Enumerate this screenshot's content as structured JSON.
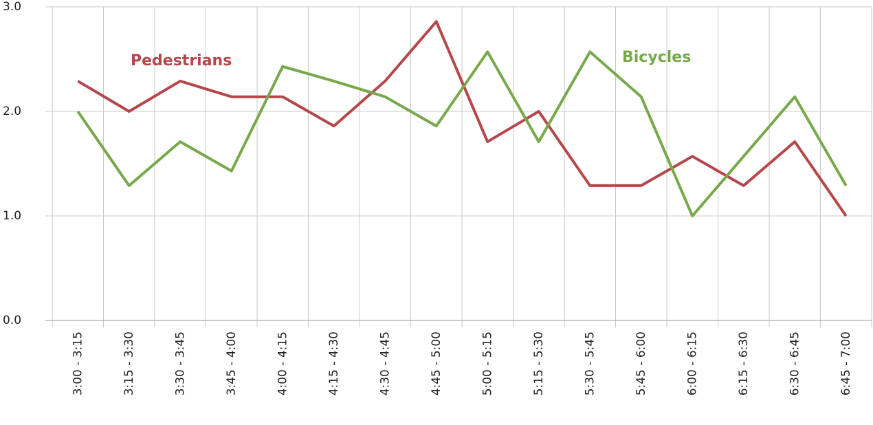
{
  "chart_data": {
    "type": "line",
    "categories": [
      "3:00 - 3:15",
      "3:15 - 3:30",
      "3:30 - 3:45",
      "3:45 - 4:00",
      "4:00 - 4:15",
      "4:15 - 4:30",
      "4:30 - 4:45",
      "4:45 - 5:00",
      "5:00 - 5:15",
      "5:15 - 5:30",
      "5:30 - 5:45",
      "5:45 - 6:00",
      "6:00 - 6:15",
      "6:15 - 6:30",
      "6:30 - 6:45",
      "6:45 - 7:00"
    ],
    "series": [
      {
        "name": "Pedestrians",
        "color": "#b5474a",
        "values": [
          2.29,
          2.0,
          2.29,
          2.14,
          2.14,
          1.86,
          2.29,
          2.86,
          1.71,
          2.0,
          1.29,
          1.29,
          1.57,
          1.29,
          1.71,
          1.0
        ]
      },
      {
        "name": "Bicycles",
        "color": "#77a84a",
        "values": [
          2.0,
          1.29,
          1.71,
          1.43,
          2.43,
          2.29,
          2.14,
          1.86,
          2.57,
          1.71,
          2.57,
          2.14,
          1.0,
          1.57,
          2.14,
          1.29
        ]
      }
    ],
    "ylim": [
      0,
      3
    ],
    "yticks": [
      {
        "value": 0,
        "label": "0.0"
      },
      {
        "value": 1,
        "label": "1.0"
      },
      {
        "value": 2,
        "label": "2.0"
      },
      {
        "value": 3,
        "label": "3.0"
      }
    ],
    "grid": true
  }
}
